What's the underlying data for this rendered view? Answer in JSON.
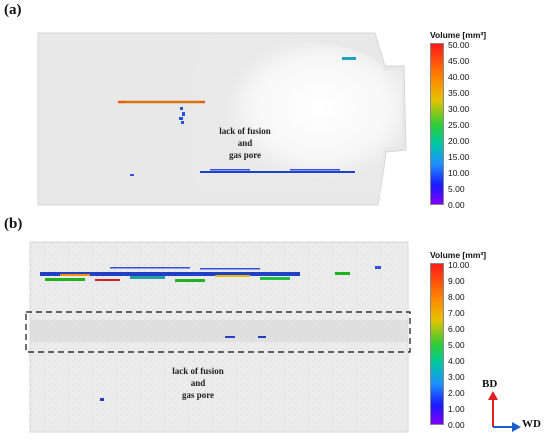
{
  "panels": {
    "a": {
      "label": "(a)",
      "annotation": [
        "lack of fusion",
        "and",
        "gas pore"
      ],
      "legend": {
        "title": "Volume [mm³]",
        "ticks": [
          "50.00",
          "45.00",
          "40.00",
          "35.00",
          "30.00",
          "25.00",
          "20.00",
          "15.00",
          "10.00",
          "5.00",
          "0.00"
        ]
      }
    },
    "b": {
      "label": "(b)",
      "annotation": [
        "lack of fusion",
        "and",
        "gas pore"
      ],
      "legend": {
        "title": "Volume [mm³]",
        "ticks": [
          "10.00",
          "9.00",
          "8.00",
          "7.00",
          "6.00",
          "5.00",
          "4.00",
          "3.00",
          "2.00",
          "1.00",
          "0.00"
        ]
      }
    }
  },
  "axes": {
    "bd": "BD",
    "wd": "WD",
    "bd_color": "#e02020",
    "wd_color": "#1a5fd0"
  }
}
